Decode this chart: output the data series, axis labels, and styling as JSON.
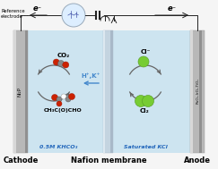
{
  "bg_color": "#f5f5f5",
  "cell_bg": "#cde4f0",
  "cathode_color": "#c8c8c8",
  "anode_color": "#c8c8c8",
  "membrane_color": "#b8ccd8",
  "title_cathode": "Cathode",
  "title_anode": "Anode",
  "title_membrane": "Nafion membrane",
  "label_ni2p": "Ni₂P",
  "label_ruo2": "RuO₂-IrO₂-TiO₂",
  "label_co2": "CO₂",
  "label_product": "CH₃C(O)CHO",
  "label_solution_cathode": "0.5M KHCO₃",
  "label_solution_anode": "Saturated KCl",
  "label_hk": "H⁺,K⁺",
  "label_cl_minus": "Cl⁻",
  "label_cl2": "Cl₂",
  "label_ref": "Reference\nelectrode",
  "electron_label": "e⁻",
  "wire_color": "#222222",
  "arrow_color": "#666666",
  "blue_arrow_color": "#4488cc",
  "text_color": "#000000",
  "blue_text_color": "#2266bb",
  "wind_circle_color": "#ddeeff",
  "wind_turbine_color": "#5566aa",
  "figsize": [
    2.43,
    1.89
  ],
  "dpi": 100
}
